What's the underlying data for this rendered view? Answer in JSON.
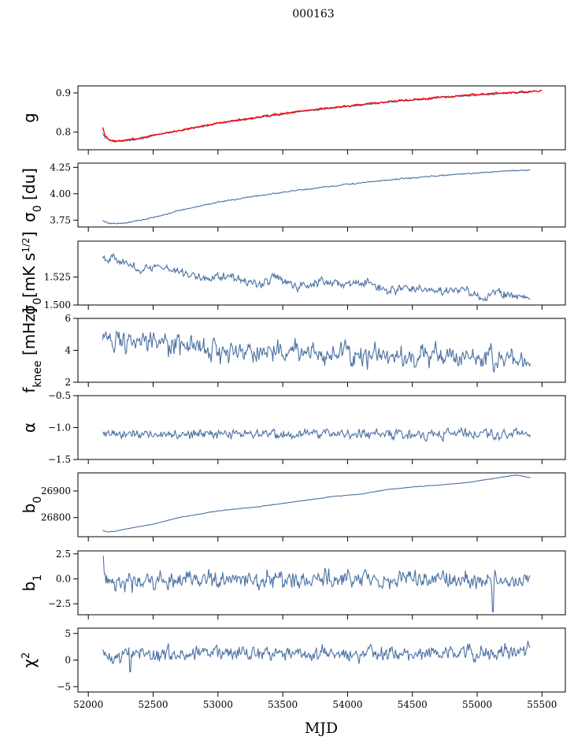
{
  "title": "000163",
  "xlabel": "MJD",
  "colors": {
    "series": "#4c72a4",
    "model": "#ff0000"
  },
  "chart_data": {
    "type": "line",
    "x_range": [
      51920,
      55680
    ],
    "x_ticks": [
      52000,
      52500,
      53000,
      53500,
      54000,
      54500,
      55000,
      55500
    ],
    "x_tick_labels": [
      "52000",
      "52500",
      "53000",
      "53500",
      "54000",
      "54500",
      "55000",
      "55500"
    ],
    "data_x_start": 52110,
    "data_x_end": 55410,
    "panels": [
      {
        "id": "g",
        "ylabel": "g",
        "ylim": [
          0.755,
          0.918
        ],
        "yticks": [
          0.8,
          0.9
        ],
        "ytick_labels": [
          "0.8",
          "0.9"
        ],
        "series": [
          {
            "name": "g",
            "color": "#4c72a4",
            "noise": 0.0015,
            "x": [
              52110,
              52130,
              52160,
              52200,
              52260,
              52400,
              52600,
              52800,
              53000,
              53300,
              53600,
              54000,
              54400,
              54800,
              55200,
              55420
            ],
            "y": [
              0.795,
              0.786,
              0.78,
              0.777,
              0.777,
              0.784,
              0.797,
              0.81,
              0.822,
              0.837,
              0.851,
              0.866,
              0.879,
              0.89,
              0.899,
              0.903
            ]
          },
          {
            "name": "g model",
            "color": "#ff0000",
            "noise": 0.0015,
            "x": [
              52110,
              52130,
              52160,
              52200,
              52260,
              52400,
              52600,
              52800,
              53000,
              53300,
              53600,
              54000,
              54400,
              54800,
              55200,
              55500
            ],
            "y": [
              0.812,
              0.79,
              0.781,
              0.778,
              0.778,
              0.785,
              0.798,
              0.811,
              0.823,
              0.838,
              0.852,
              0.867,
              0.88,
              0.891,
              0.9,
              0.905
            ]
          }
        ]
      },
      {
        "id": "sigma0",
        "ylabel": "σ0 [du]",
        "ylim": [
          3.685,
          4.29
        ],
        "yticks": [
          3.75,
          4.0,
          4.25
        ],
        "ytick_labels": [
          "3.75",
          "4.00",
          "4.25"
        ],
        "series": [
          {
            "name": "sigma0",
            "color": "#4c72a4",
            "noise": 0.004,
            "x": [
              52110,
              52150,
              52200,
              52300,
              52500,
              52700,
              53000,
              53300,
              53600,
              54000,
              54400,
              54800,
              55200,
              55410
            ],
            "y": [
              3.745,
              3.725,
              3.715,
              3.725,
              3.775,
              3.84,
              3.92,
              3.98,
              4.03,
              4.09,
              4.14,
              4.18,
              4.215,
              4.225
            ]
          }
        ]
      },
      {
        "id": "sigma0_white",
        "ylabel": "σ0[mK s^1/2]",
        "ylim": [
          1.5,
          1.557
        ],
        "yticks": [
          1.5,
          1.525
        ],
        "ytick_labels": [
          "1.500",
          "1.525"
        ],
        "series": [
          {
            "name": "sigma0 white",
            "color": "#4c72a4",
            "noise": 0.0025,
            "x": [
              52110,
              52200,
              52300,
              52400,
              52600,
              52750,
              52900,
              53100,
              53300,
              53450,
              53600,
              53800,
              54000,
              54150,
              54300,
              54500,
              54700,
              54900,
              55050,
              55150,
              55300,
              55410
            ],
            "y": [
              1.543,
              1.542,
              1.536,
              1.532,
              1.534,
              1.528,
              1.524,
              1.526,
              1.519,
              1.524,
              1.516,
              1.522,
              1.518,
              1.52,
              1.512,
              1.516,
              1.512,
              1.514,
              1.504,
              1.513,
              1.507,
              1.507
            ]
          }
        ]
      },
      {
        "id": "fknee",
        "ylabel": "f_knee [mHz]",
        "ylim": [
          2,
          6
        ],
        "yticks": [
          2,
          4,
          6
        ],
        "ytick_labels": [
          "2",
          "4",
          "6"
        ],
        "series": [
          {
            "name": "fknee",
            "color": "#4c72a4",
            "noise": 0.45,
            "x": [
              52110,
              52300,
              52600,
              53000,
              53500,
              54000,
              54500,
              55000,
              55410
            ],
            "y": [
              4.8,
              4.6,
              4.3,
              4.0,
              3.9,
              3.8,
              3.7,
              3.6,
              3.4
            ]
          }
        ]
      },
      {
        "id": "alpha",
        "ylabel": "α",
        "ylim": [
          -1.5,
          -0.5
        ],
        "yticks": [
          -1.5,
          -1.0,
          -0.5
        ],
        "ytick_labels": [
          "−1.5",
          "−1.0",
          "−0.5"
        ],
        "series": [
          {
            "name": "alpha",
            "color": "#4c72a4",
            "noise": 0.05,
            "x": [
              52110,
              53000,
              54000,
              55000,
              55410
            ],
            "y": [
              -1.1,
              -1.1,
              -1.1,
              -1.1,
              -1.1
            ]
          }
        ]
      },
      {
        "id": "b0",
        "ylabel": "b0",
        "ylim": [
          26728,
          26968
        ],
        "yticks": [
          26800,
          26900
        ],
        "ytick_labels": [
          "26800",
          "26900"
        ],
        "series": [
          {
            "name": "b0",
            "color": "#4c72a4",
            "noise": 0.6,
            "x": [
              52110,
              52150,
              52200,
              52300,
              52500,
              52700,
              53000,
              53300,
              53600,
              53900,
              54100,
              54300,
              54500,
              54700,
              54900,
              55100,
              55300,
              55410
            ],
            "y": [
              26752,
              26746,
              26748,
              26758,
              26775,
              26800,
              26825,
              26840,
              26860,
              26880,
              26888,
              26905,
              26915,
              26922,
              26930,
              26945,
              26960,
              26950
            ]
          }
        ]
      },
      {
        "id": "b1",
        "ylabel": "b1",
        "ylim": [
          -3.6,
          2.8
        ],
        "yticks": [
          -2.5,
          0.0,
          2.5
        ],
        "ytick_labels": [
          "−2.5",
          "0.0",
          "2.5"
        ],
        "series": [
          {
            "name": "b1",
            "color": "#4c72a4",
            "noise": 0.55,
            "x": [
              52110,
              52130,
              52180,
              52300,
              53000,
              54000,
              55000,
              55410
            ],
            "y": [
              2.4,
              0.6,
              -0.2,
              -0.3,
              -0.1,
              0.0,
              -0.1,
              0.0
            ]
          }
        ]
      },
      {
        "id": "chi2",
        "ylabel": "χ²",
        "ylim": [
          -6,
          6
        ],
        "yticks": [
          -5,
          0,
          5
        ],
        "ytick_labels": [
          "−5",
          "0",
          "5"
        ],
        "series": [
          {
            "name": "chi2",
            "color": "#4c72a4",
            "noise": 0.9,
            "x": [
              52110,
              53000,
              54000,
              55000,
              55410
            ],
            "y": [
              1.2,
              1.3,
              1.2,
              1.3,
              1.7
            ]
          }
        ]
      }
    ]
  }
}
